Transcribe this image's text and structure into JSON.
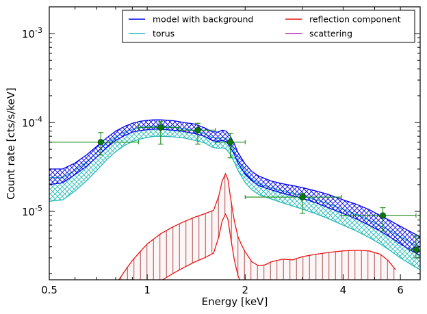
{
  "chart_data": {
    "type": "line",
    "xlabel": "Energy [keV]",
    "ylabel": "Count rate [cts/s/keV]",
    "x_scale": "log",
    "y_scale": "log",
    "xlim": [
      0.5,
      6.9
    ],
    "ylim": [
      1.7e-06,
      0.002
    ],
    "grid": false,
    "legend_position": "top-right",
    "x_ticks": [
      {
        "value": 0.5,
        "label": "0.5"
      },
      {
        "value": 1,
        "label": "1"
      },
      {
        "value": 2,
        "label": "2"
      },
      {
        "value": 4,
        "label": "4"
      },
      {
        "value": 6,
        "label": "6"
      }
    ],
    "y_ticks": [
      {
        "value": 1e-05,
        "base": "10",
        "exp": "-5"
      },
      {
        "value": 0.0001,
        "base": "10",
        "exp": "-4"
      },
      {
        "value": 0.001,
        "base": "10",
        "exp": "-3"
      }
    ],
    "legend": [
      {
        "label": "model with background",
        "color": "#0000ee"
      },
      {
        "label": "reflection component",
        "color": "#ee1111"
      },
      {
        "label": "torus",
        "color": "#22b8b8"
      },
      {
        "label": "scattering",
        "color": "#bb22bb"
      }
    ],
    "series": [
      {
        "name": "model with background",
        "color": "#0000ee",
        "hatch": "crosshatch",
        "x": [
          0.5,
          0.55,
          0.6,
          0.65,
          0.7,
          0.75,
          0.8,
          0.85,
          0.9,
          0.95,
          1.0,
          1.05,
          1.1,
          1.2,
          1.3,
          1.4,
          1.5,
          1.58,
          1.65,
          1.7,
          1.75,
          1.8,
          1.85,
          1.9,
          2.0,
          2.1,
          2.2,
          2.4,
          2.6,
          2.8,
          3.0,
          3.3,
          3.6,
          4.0,
          4.4,
          4.8,
          5.2,
          5.6,
          6.0,
          6.5,
          6.9
        ],
        "upper": [
          3e-05,
          3e-05,
          3.5e-05,
          4.3e-05,
          5.4e-05,
          6.7e-05,
          8e-05,
          9e-05,
          9.8e-05,
          0.000103,
          0.000106,
          0.000107,
          0.000107,
          0.000105,
          0.0001,
          9.6e-05,
          8.7e-05,
          7.9e-05,
          7.8e-05,
          8.2e-05,
          8e-05,
          7e-05,
          5.8e-05,
          4.6e-05,
          3.4e-05,
          2.8e-05,
          2.5e-05,
          2.2e-05,
          2.05e-05,
          1.95e-05,
          1.85e-05,
          1.7e-05,
          1.55e-05,
          1.35e-05,
          1.2e-05,
          1.05e-05,
          9e-06,
          7.8e-06,
          6.8e-06,
          5.8e-06,
          5.2e-06
        ],
        "lower": [
          2e-05,
          2.1e-05,
          2.6e-05,
          3.2e-05,
          4.1e-05,
          5.2e-05,
          6.3e-05,
          7.1e-05,
          7.8e-05,
          8.1e-05,
          8.3e-05,
          8.4e-05,
          8.4e-05,
          8.2e-05,
          7.9e-05,
          7.5e-05,
          7e-05,
          6.3e-05,
          6.1e-05,
          6.3e-05,
          6.1e-05,
          5.3e-05,
          4.4e-05,
          3.5e-05,
          2.6e-05,
          2.2e-05,
          1.95e-05,
          1.75e-05,
          1.6e-05,
          1.5e-05,
          1.4e-05,
          1.25e-05,
          1.1e-05,
          9.5e-06,
          8.2e-06,
          7e-06,
          6e-06,
          5.1e-06,
          4.3e-06,
          3.6e-06,
          3.2e-06
        ]
      },
      {
        "name": "torus",
        "color": "#22b8b8",
        "hatch": "crosshatch",
        "x": [
          0.5,
          0.55,
          0.6,
          0.65,
          0.7,
          0.75,
          0.8,
          0.85,
          0.9,
          0.95,
          1.0,
          1.05,
          1.1,
          1.2,
          1.3,
          1.4,
          1.5,
          1.58,
          1.65,
          1.7,
          1.75,
          1.8,
          1.85,
          1.9,
          2.0,
          2.1,
          2.2,
          2.4,
          2.6,
          2.8,
          3.0,
          3.3,
          3.6,
          4.0,
          4.4,
          4.8,
          5.2,
          5.6,
          6.0,
          6.5,
          6.9
        ],
        "upper": [
          2.4e-05,
          2.4e-05,
          2.9e-05,
          3.6e-05,
          4.6e-05,
          5.8e-05,
          6.9e-05,
          7.8e-05,
          8.4e-05,
          8.8e-05,
          9e-05,
          9.1e-05,
          9.1e-05,
          8.9e-05,
          8.5e-05,
          8.1e-05,
          7.5e-05,
          6.8e-05,
          6.6e-05,
          6.8e-05,
          6.6e-05,
          5.8e-05,
          4.8e-05,
          3.8e-05,
          2.8e-05,
          2.3e-05,
          2.05e-05,
          1.85e-05,
          1.7e-05,
          1.6e-05,
          1.5e-05,
          1.35e-05,
          1.22e-05,
          1.05e-05,
          9.2e-06,
          8e-06,
          6.9e-06,
          6e-06,
          5.2e-06,
          4.4e-06,
          3.9e-06
        ],
        "lower": [
          1.3e-05,
          1.35e-05,
          1.7e-05,
          2.2e-05,
          2.9e-05,
          3.8e-05,
          4.7e-05,
          5.5e-05,
          6.1e-05,
          6.5e-05,
          6.8e-05,
          7e-05,
          7e-05,
          6.9e-05,
          6.7e-05,
          6.3e-05,
          5.9e-05,
          5.3e-05,
          5.1e-05,
          5.2e-05,
          5e-05,
          4.4e-05,
          3.6e-05,
          2.9e-05,
          2.1e-05,
          1.75e-05,
          1.55e-05,
          1.38e-05,
          1.25e-05,
          1.15e-05,
          1.06e-05,
          9.4e-06,
          8.3e-06,
          7e-06,
          6e-06,
          5.1e-06,
          4.3e-06,
          3.6e-06,
          3e-06,
          2.5e-06,
          2.2e-06
        ]
      },
      {
        "name": "reflection component",
        "color": "#ee1111",
        "hatch": "vertical",
        "x": [
          0.75,
          0.8,
          0.85,
          0.9,
          0.95,
          1.0,
          1.1,
          1.2,
          1.3,
          1.4,
          1.5,
          1.6,
          1.66,
          1.7,
          1.74,
          1.77,
          1.8,
          1.85,
          1.9,
          1.95,
          2.0,
          2.1,
          2.2,
          2.3,
          2.4,
          2.6,
          2.8,
          3.0,
          3.3,
          3.6,
          4.0,
          4.4,
          4.8,
          5.2,
          5.5,
          5.8
        ],
        "upper": [
          1e-06,
          1.5e-06,
          2.1e-06,
          2.8e-06,
          3.5e-06,
          4.3e-06,
          5.6e-06,
          6.7e-06,
          7.7e-06,
          8.6e-06,
          9.4e-06,
          1.03e-05,
          1.5e-05,
          2.2e-05,
          2.65e-05,
          2.3e-05,
          1.5e-05,
          8e-06,
          5.2e-06,
          4.2e-06,
          3.5e-06,
          2.7e-06,
          2.45e-06,
          2.5e-06,
          2.7e-06,
          2.9e-06,
          2.85e-06,
          3.1e-06,
          3.3e-06,
          3.45e-06,
          3.6e-06,
          3.65e-06,
          3.6e-06,
          3.3e-06,
          2.8e-06,
          2.2e-06
        ],
        "lower": [
          6e-07,
          7e-07,
          8e-07,
          9.5e-07,
          1.1e-06,
          1.3e-06,
          1.65e-06,
          2e-06,
          2.35e-06,
          2.7e-06,
          3e-06,
          3.4e-06,
          5.2e-06,
          7.8e-06,
          9.3e-06,
          8.2e-06,
          5.4e-06,
          2.9e-06,
          1.9e-06,
          1.5e-06,
          1.25e-06,
          1e-06,
          9e-07,
          9e-07,
          9.5e-07,
          1e-06,
          1e-06,
          1.1e-06,
          1.15e-06,
          1.2e-06,
          1.25e-06,
          1.25e-06,
          1.2e-06,
          1.1e-06,
          9.5e-07,
          8e-07
        ]
      }
    ],
    "data_points": {
      "color": "#118811",
      "points": [
        {
          "x": 0.72,
          "y": 6e-05,
          "xerr_low": 0.5,
          "xerr_high": 0.94,
          "yerr_low": 4.3e-05,
          "yerr_high": 7.7e-05
        },
        {
          "x": 1.1,
          "y": 8.8e-05,
          "xerr_low": 0.94,
          "xerr_high": 1.25,
          "yerr_low": 5.7e-05,
          "yerr_high": 0.000102
        },
        {
          "x": 1.43,
          "y": 8.2e-05,
          "xerr_low": 1.25,
          "xerr_high": 1.62,
          "yerr_low": 5.7e-05,
          "yerr_high": 9.8e-05
        },
        {
          "x": 1.8,
          "y": 6e-05,
          "xerr_low": 1.62,
          "xerr_high": 2.0,
          "yerr_low": 4e-05,
          "yerr_high": 7.5e-05
        },
        {
          "x": 3.0,
          "y": 1.45e-05,
          "xerr_low": 2.0,
          "xerr_high": 3.95,
          "yerr_low": 9.5e-06,
          "yerr_high": 1.6e-05
        },
        {
          "x": 5.3,
          "y": 9e-06,
          "xerr_low": 3.95,
          "xerr_high": 6.7,
          "yerr_low": 6e-06,
          "yerr_high": 1.1e-05
        },
        {
          "x": 6.7,
          "y": 3.7e-06,
          "xerr_low": 6.4,
          "xerr_high": 7.1,
          "yerr_low": 3e-06,
          "yerr_high": 5.3e-06
        }
      ]
    }
  }
}
